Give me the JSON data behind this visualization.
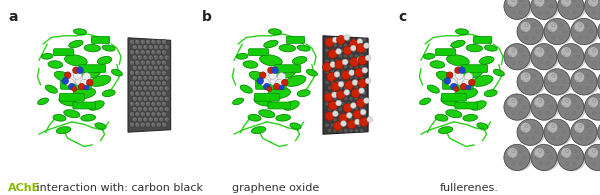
{
  "background_color": "#ffffff",
  "panel_labels": [
    "a",
    "b",
    "c"
  ],
  "panel_label_fontsize": 10,
  "panel_label_fontweight": "bold",
  "caption_ache_text": "AChE",
  "caption_ache_color": "#88bb00",
  "caption_rest_text": " interaction with: carbon black",
  "caption_rest_color": "#333333",
  "caption_b_text": "graphene oxide",
  "caption_c_text": "fullerenes.",
  "caption_fontsize": 8.0,
  "protein_color": "#11cc00",
  "protein_dark": "#008800",
  "fig_width": 6.0,
  "fig_height": 1.95,
  "dpi": 100
}
